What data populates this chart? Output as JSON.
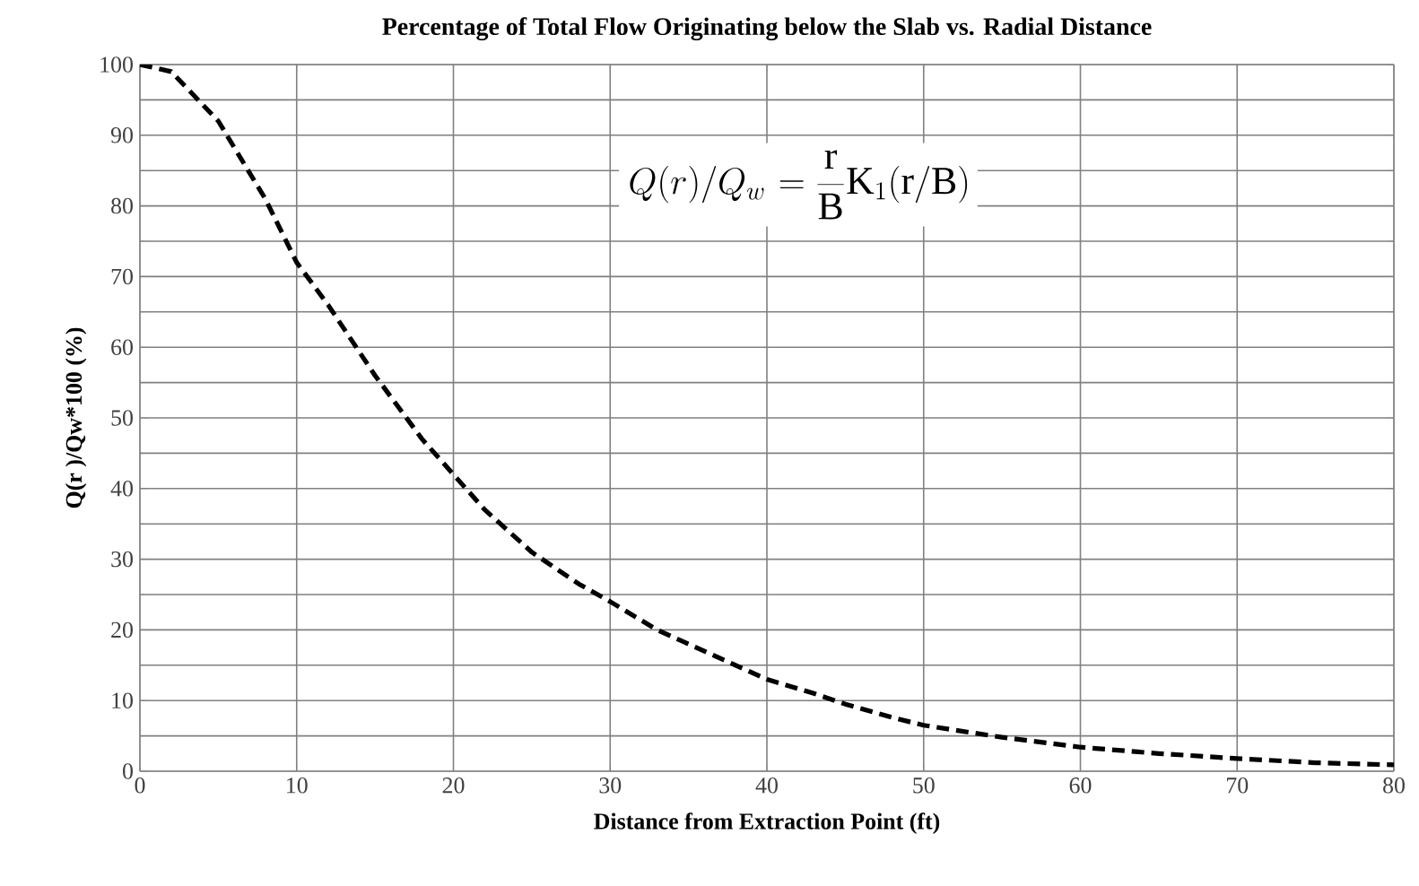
{
  "chart_data": {
    "type": "line",
    "title": "Percentage of Total Flow Originating below the Slab vs. Radial Distance",
    "xlabel": "Distance from Extraction Point (ft)",
    "ylabel": "Q(r )/Qw*100  (%)",
    "annotations": [
      "\\left.Q(r)\\middle/Q_w\\right. = \\frac{\\mathrm{r}}{\\mathrm{B}}\\mathrm{K}_1(\\mathrm{r/B})"
    ],
    "x": [
      0,
      2,
      5,
      8,
      10,
      12,
      15,
      18,
      20,
      22,
      25,
      28,
      30,
      33,
      35,
      38,
      40,
      43,
      45,
      48,
      50,
      55,
      60,
      65,
      70,
      75,
      80
    ],
    "series": [
      {
        "color": "#000000",
        "line_style": "dashed",
        "values": [
          100,
          99,
          92,
          81,
          72,
          66,
          56,
          47,
          42,
          37,
          31,
          26.5,
          24,
          20,
          18,
          15,
          13,
          11,
          9.5,
          7.6,
          6.5,
          4.8,
          3.4,
          2.5,
          1.8,
          1.2,
          0.9
        ]
      }
    ],
    "xlim": [
      0,
      80
    ],
    "ylim": [
      0,
      100
    ],
    "xticks": [
      0,
      10,
      20,
      30,
      40,
      50,
      60,
      70,
      80
    ],
    "yticks": [
      0,
      10,
      20,
      30,
      40,
      50,
      60,
      70,
      80,
      90,
      100
    ],
    "grid": true,
    "marker": "none"
  }
}
